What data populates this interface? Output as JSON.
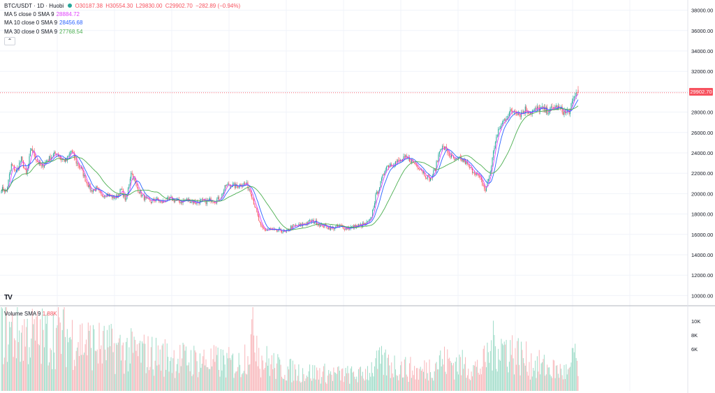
{
  "header": {
    "symbol": "BTC/USDT · 1D · Huobi",
    "o": "O30187.38",
    "h": "H30554.30",
    "l": "L29830.00",
    "c": "C29902.70",
    "chg": "−282.89 (−0.94%)",
    "chg_color": "#f7525f"
  },
  "indicators": [
    {
      "label": "MA 5 close 0 SMA 9",
      "value": "28884.72",
      "color": "#e040fb"
    },
    {
      "label": "MA 10 close 0 SMA 9",
      "value": "28456.68",
      "color": "#2962ff"
    },
    {
      "label": "MA 30 close 0 SMA 9",
      "value": "27768.54",
      "color": "#4caf50"
    }
  ],
  "collapse_icon": "chevron-up-icon",
  "volume_legend": {
    "label": "Volume SMA 9",
    "value": "1.88K",
    "color": "#f7525f"
  },
  "last_price_tag": "29902.70",
  "logo": "TV",
  "colors": {
    "up": "#26a69a",
    "down": "#f7525f",
    "up_vol": "#9fdcc8",
    "down_vol": "#f8b5b9",
    "grid": "#f0f3fa"
  },
  "chart_data": {
    "type": "candlestick",
    "price_axis": {
      "ticks": [
        "10000.00",
        "12000.00",
        "14000.00",
        "16000.00",
        "18000.00",
        "20000.00",
        "22000.00",
        "24000.00",
        "26000.00",
        "28000.00",
        "30000.00",
        "32000.00",
        "34000.00",
        "36000.00",
        "38000.00"
      ],
      "range": [
        9000,
        39000
      ]
    },
    "volume_axis": {
      "ticks": [
        "6K",
        "8K",
        "10K"
      ],
      "range": [
        0,
        12000
      ]
    },
    "last_price": 29902.7,
    "series": [
      {
        "name": "MA 5",
        "color": "#e040fb"
      },
      {
        "name": "MA 10",
        "color": "#2962ff"
      },
      {
        "name": "MA 30",
        "color": "#4caf50"
      }
    ],
    "close_anchors": [
      [
        0,
        20500
      ],
      [
        5,
        20200
      ],
      [
        10,
        22800
      ],
      [
        15,
        22200
      ],
      [
        20,
        23400
      ],
      [
        25,
        21800
      ],
      [
        30,
        24500
      ],
      [
        35,
        23300
      ],
      [
        40,
        22600
      ],
      [
        45,
        23200
      ],
      [
        50,
        23600
      ],
      [
        55,
        24000
      ],
      [
        60,
        23400
      ],
      [
        65,
        23200
      ],
      [
        70,
        24200
      ],
      [
        75,
        23100
      ],
      [
        80,
        22400
      ],
      [
        85,
        21200
      ],
      [
        90,
        20300
      ],
      [
        95,
        20500
      ],
      [
        100,
        19800
      ],
      [
        105,
        20000
      ],
      [
        110,
        19700
      ],
      [
        115,
        19600
      ],
      [
        120,
        20400
      ],
      [
        125,
        19300
      ],
      [
        130,
        22200
      ],
      [
        135,
        20800
      ],
      [
        140,
        19900
      ],
      [
        145,
        19400
      ],
      [
        150,
        19200
      ],
      [
        155,
        19500
      ],
      [
        160,
        19100
      ],
      [
        165,
        19400
      ],
      [
        170,
        19500
      ],
      [
        175,
        19300
      ],
      [
        180,
        19200
      ],
      [
        185,
        19400
      ],
      [
        190,
        19300
      ],
      [
        195,
        19100
      ],
      [
        200,
        19300
      ],
      [
        205,
        19200
      ],
      [
        210,
        19400
      ],
      [
        215,
        19300
      ],
      [
        220,
        19700
      ],
      [
        225,
        20800
      ],
      [
        230,
        20900
      ],
      [
        235,
        20700
      ],
      [
        240,
        20900
      ],
      [
        245,
        21000
      ],
      [
        250,
        20200
      ],
      [
        255,
        18400
      ],
      [
        260,
        16700
      ],
      [
        265,
        16400
      ],
      [
        270,
        16500
      ],
      [
        275,
        16300
      ],
      [
        280,
        16400
      ],
      [
        285,
        16200
      ],
      [
        290,
        16700
      ],
      [
        295,
        16800
      ],
      [
        300,
        16900
      ],
      [
        305,
        17100
      ],
      [
        310,
        17300
      ],
      [
        315,
        17200
      ],
      [
        320,
        16900
      ],
      [
        325,
        16800
      ],
      [
        330,
        16600
      ],
      [
        335,
        16700
      ],
      [
        340,
        16800
      ],
      [
        345,
        16600
      ],
      [
        350,
        16700
      ],
      [
        355,
        16800
      ],
      [
        360,
        16900
      ],
      [
        365,
        17000
      ],
      [
        370,
        17400
      ],
      [
        375,
        19700
      ],
      [
        380,
        21000
      ],
      [
        385,
        22600
      ],
      [
        390,
        22900
      ],
      [
        395,
        23100
      ],
      [
        400,
        23200
      ],
      [
        405,
        23500
      ],
      [
        410,
        23300
      ],
      [
        415,
        22900
      ],
      [
        420,
        22500
      ],
      [
        425,
        21800
      ],
      [
        430,
        21400
      ],
      [
        435,
        22500
      ],
      [
        440,
        24600
      ],
      [
        445,
        24400
      ],
      [
        450,
        23700
      ],
      [
        455,
        23200
      ],
      [
        460,
        23400
      ],
      [
        465,
        23100
      ],
      [
        470,
        22400
      ],
      [
        475,
        22100
      ],
      [
        480,
        21400
      ],
      [
        485,
        20300
      ],
      [
        490,
        22200
      ],
      [
        495,
        25200
      ],
      [
        500,
        26600
      ],
      [
        505,
        27400
      ],
      [
        510,
        28000
      ],
      [
        515,
        28200
      ],
      [
        520,
        27800
      ],
      [
        525,
        28300
      ],
      [
        530,
        28000
      ],
      [
        535,
        28200
      ],
      [
        540,
        28400
      ],
      [
        545,
        28100
      ],
      [
        550,
        28200
      ],
      [
        555,
        28500
      ],
      [
        560,
        28300
      ],
      [
        565,
        27900
      ],
      [
        570,
        28200
      ],
      [
        575,
        29800
      ],
      [
        578,
        29902.7
      ]
    ],
    "volume_profile": [
      [
        0,
        9500
      ],
      [
        20,
        9000
      ],
      [
        40,
        8500
      ],
      [
        60,
        9000
      ],
      [
        80,
        8000
      ],
      [
        100,
        7000
      ],
      [
        120,
        6500
      ],
      [
        140,
        6000
      ],
      [
        160,
        5500
      ],
      [
        180,
        5000
      ],
      [
        200,
        4800
      ],
      [
        220,
        4500
      ],
      [
        240,
        4200
      ],
      [
        255,
        9800
      ],
      [
        260,
        5200
      ],
      [
        280,
        3500
      ],
      [
        300,
        3000
      ],
      [
        320,
        2800
      ],
      [
        340,
        2600
      ],
      [
        360,
        2500
      ],
      [
        370,
        3500
      ],
      [
        380,
        4500
      ],
      [
        400,
        3800
      ],
      [
        420,
        3000
      ],
      [
        440,
        4800
      ],
      [
        460,
        4200
      ],
      [
        480,
        3500
      ],
      [
        495,
        7500
      ],
      [
        510,
        6500
      ],
      [
        530,
        4500
      ],
      [
        550,
        3500
      ],
      [
        570,
        2800
      ],
      [
        575,
        7000
      ],
      [
        578,
        2500
      ]
    ],
    "total_days": 579
  }
}
